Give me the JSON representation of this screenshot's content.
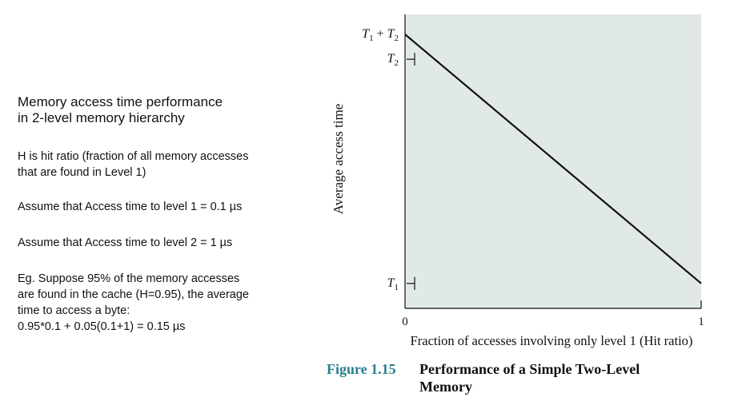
{
  "left_panel": {
    "title_line1": "Memory access time performance",
    "title_line2": "in 2-level memory hierarchy",
    "hit_ratio_line1": "H is hit ratio (fraction of all memory accesses",
    "hit_ratio_line2": "that are found in Level 1)",
    "assume_level1": "Assume that Access time to level 1 = 0.1 µs",
    "assume_level2": "Assume that Access time to level 2 = 1 µs",
    "example_line1": "Eg. Suppose 95% of the memory accesses",
    "example_line2": "are found in the cache (H=0.95), the average",
    "example_line3": "time to access a byte:",
    "example_line4": "0.95*0.1 + 0.05(0.1+1) = 0.15 µs"
  },
  "caption": {
    "figure_number": "Figure 1.15",
    "figure_title": "Performance of a Simple Two-Level Memory"
  },
  "chart_data": {
    "type": "line",
    "xlabel": "Fraction of accesses involving only level 1 (Hit ratio)",
    "ylabel": "Average access time",
    "xlim": [
      0,
      1
    ],
    "x_ticks": [
      "0",
      "1"
    ],
    "y_ticks": [
      {
        "sub1": "T",
        "sub1_index": "1",
        "plus": "",
        "sub2": "",
        "sub2_index": "",
        "value": 0.1
      },
      {
        "sub1": "T",
        "sub1_index": "2",
        "plus": "",
        "sub2": "",
        "sub2_index": "",
        "value": 1.0
      },
      {
        "sub1": "T",
        "sub1_index": "1",
        "plus": "+",
        "sub2": "T",
        "sub2_index": "2",
        "value": 1.1
      }
    ],
    "y_tick_values": [
      0.1,
      1.0,
      1.1
    ],
    "ylim": [
      0,
      1.18
    ],
    "series": [
      {
        "x": [
          0,
          1
        ],
        "y": [
          1.1,
          0.1
        ]
      }
    ],
    "plot_background": "#e1e9e7",
    "line_color": "#111111",
    "grid": false
  }
}
